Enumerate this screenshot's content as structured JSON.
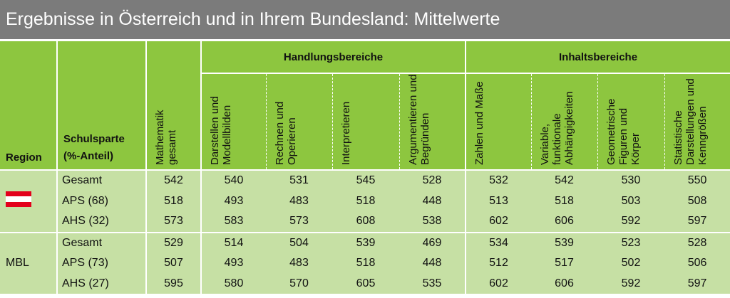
{
  "title": "Ergebnisse in Österreich und in Ihrem Bundesland: Mittelwerte",
  "table": {
    "header": {
      "region": "Region",
      "schulsparte": [
        "Schulsparte",
        "(%-Anteil)"
      ],
      "gesamt": "Mathematik gesamt",
      "groups": [
        {
          "name": "Handlungsbereiche",
          "columns": [
            "Darstellen und Modellbilden",
            "Rechnen und Operieren",
            "Interpretieren",
            "Argumentieren und Begründen"
          ]
        },
        {
          "name": "Inhaltsbereiche",
          "columns": [
            "Zahlen und Maße",
            "Variable, funktionale Abhängigkeiten",
            "Geometrische Figuren und Körper",
            "Statistische Darstellungen und Kenngrößen"
          ]
        }
      ]
    },
    "sections": [
      {
        "rows": [
          {
            "label": "Gesamt",
            "values": [
              542,
              540,
              531,
              545,
              528,
              532,
              542,
              530,
              550
            ]
          },
          {
            "label": "APS (68)",
            "values": [
              518,
              493,
              483,
              518,
              448,
              513,
              518,
              503,
              508
            ]
          },
          {
            "label": "AHS (32)",
            "values": [
              573,
              583,
              573,
              608,
              538,
              602,
              606,
              592,
              597
            ]
          }
        ]
      },
      {
        "region": "MBL",
        "rows": [
          {
            "label": "Gesamt",
            "values": [
              529,
              514,
              504,
              539,
              469,
              534,
              539,
              523,
              528
            ]
          },
          {
            "label": "APS (73)",
            "values": [
              507,
              493,
              483,
              518,
              448,
              512,
              517,
              502,
              506
            ]
          },
          {
            "label": "AHS (27)",
            "values": [
              595,
              580,
              570,
              605,
              535,
              602,
              606,
              592,
              597
            ]
          }
        ]
      }
    ]
  }
}
